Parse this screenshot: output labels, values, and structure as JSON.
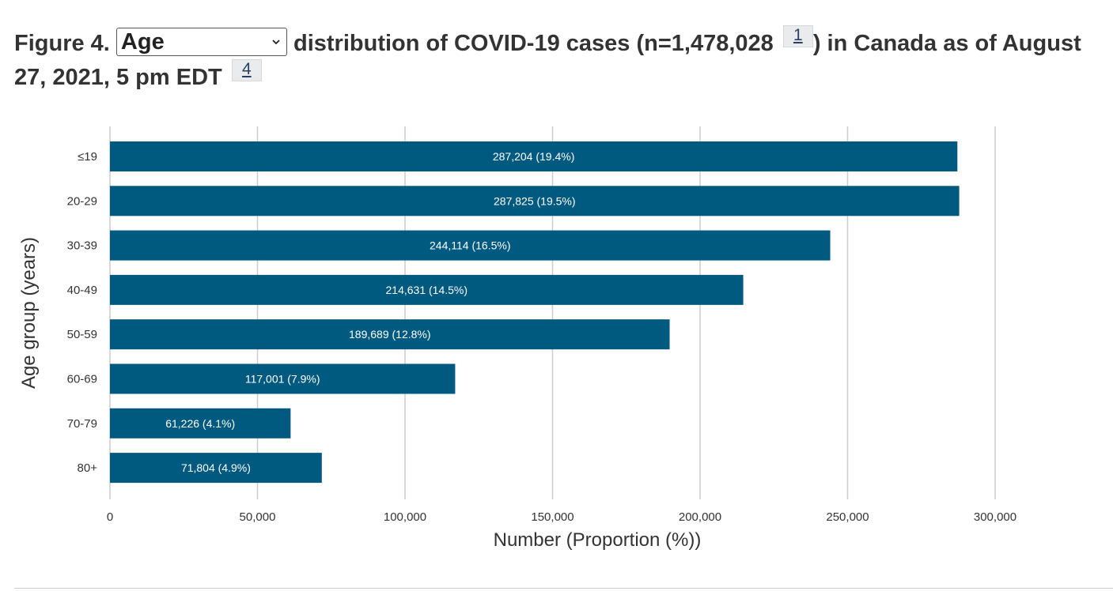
{
  "figure": {
    "prefix": "Figure 4.",
    "select": {
      "selected": "Age"
    },
    "middle": "distribution of COVID-19 cases (n=1,478,028",
    "footnote_1": "1",
    "suffix": ") in Canada as of August 27, 2021, 5 pm EDT",
    "footnote_2": "4"
  },
  "colors": {
    "bar": "#005a7f",
    "grid": "#cccccc",
    "axis_text": "#333333",
    "label_text": "#ffffff"
  },
  "chart_data": {
    "type": "bar",
    "orientation": "horizontal",
    "categories": [
      "≤19",
      "20-29",
      "30-39",
      "40-49",
      "50-59",
      "60-69",
      "70-79",
      "80+"
    ],
    "values": [
      287204,
      287825,
      244114,
      214631,
      189689,
      117001,
      61226,
      71804
    ],
    "data_labels": [
      "287,204 (19.4%)",
      "287,825 (19.5%)",
      "244,114 (16.5%)",
      "214,631 (14.5%)",
      "189,689 (12.8%)",
      "117,001 (7.9%)",
      "61,226 (4.1%)",
      "71,804 (4.9%)"
    ],
    "xlabel": "Number (Proportion (%))",
    "ylabel": "Age group (years)",
    "xlim": [
      0,
      300000
    ],
    "xticks": [
      0,
      50000,
      100000,
      150000,
      200000,
      250000,
      300000
    ],
    "xtick_labels": [
      "0",
      "50,000",
      "100,000",
      "150,000",
      "200,000",
      "250,000",
      "300,000"
    ],
    "grid": true
  }
}
